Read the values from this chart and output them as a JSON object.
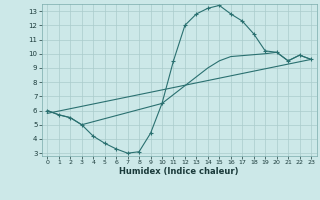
{
  "xlabel": "Humidex (Indice chaleur)",
  "bg_color": "#cce8e8",
  "grid_color": "#aacccc",
  "line_color": "#2a7070",
  "xlim": [
    -0.5,
    23.5
  ],
  "ylim": [
    2.8,
    13.5
  ],
  "xticks": [
    0,
    1,
    2,
    3,
    4,
    5,
    6,
    7,
    8,
    9,
    10,
    11,
    12,
    13,
    14,
    15,
    16,
    17,
    18,
    19,
    20,
    21,
    22,
    23
  ],
  "yticks": [
    3,
    4,
    5,
    6,
    7,
    8,
    9,
    10,
    11,
    12,
    13
  ],
  "line1_x": [
    0,
    1,
    2,
    3,
    4,
    5,
    6,
    7,
    8,
    9,
    10,
    11,
    12,
    13,
    14,
    15,
    16,
    17,
    18,
    19,
    20,
    21,
    22,
    23
  ],
  "line1_y": [
    6.0,
    5.7,
    5.5,
    5.0,
    4.2,
    3.7,
    3.3,
    3.0,
    3.1,
    4.4,
    6.5,
    9.5,
    12.0,
    12.8,
    13.2,
    13.4,
    12.8,
    12.3,
    11.4,
    10.2,
    10.1,
    9.5,
    9.9,
    9.6
  ],
  "line2_x": [
    0,
    1,
    2,
    3,
    10,
    14,
    15,
    16,
    19,
    20,
    21,
    22,
    23
  ],
  "line2_y": [
    6.0,
    5.7,
    5.5,
    5.0,
    6.5,
    9.0,
    9.5,
    9.8,
    10.0,
    10.1,
    9.5,
    9.9,
    9.6
  ],
  "line3_x": [
    0,
    23
  ],
  "line3_y": [
    5.8,
    9.6
  ]
}
